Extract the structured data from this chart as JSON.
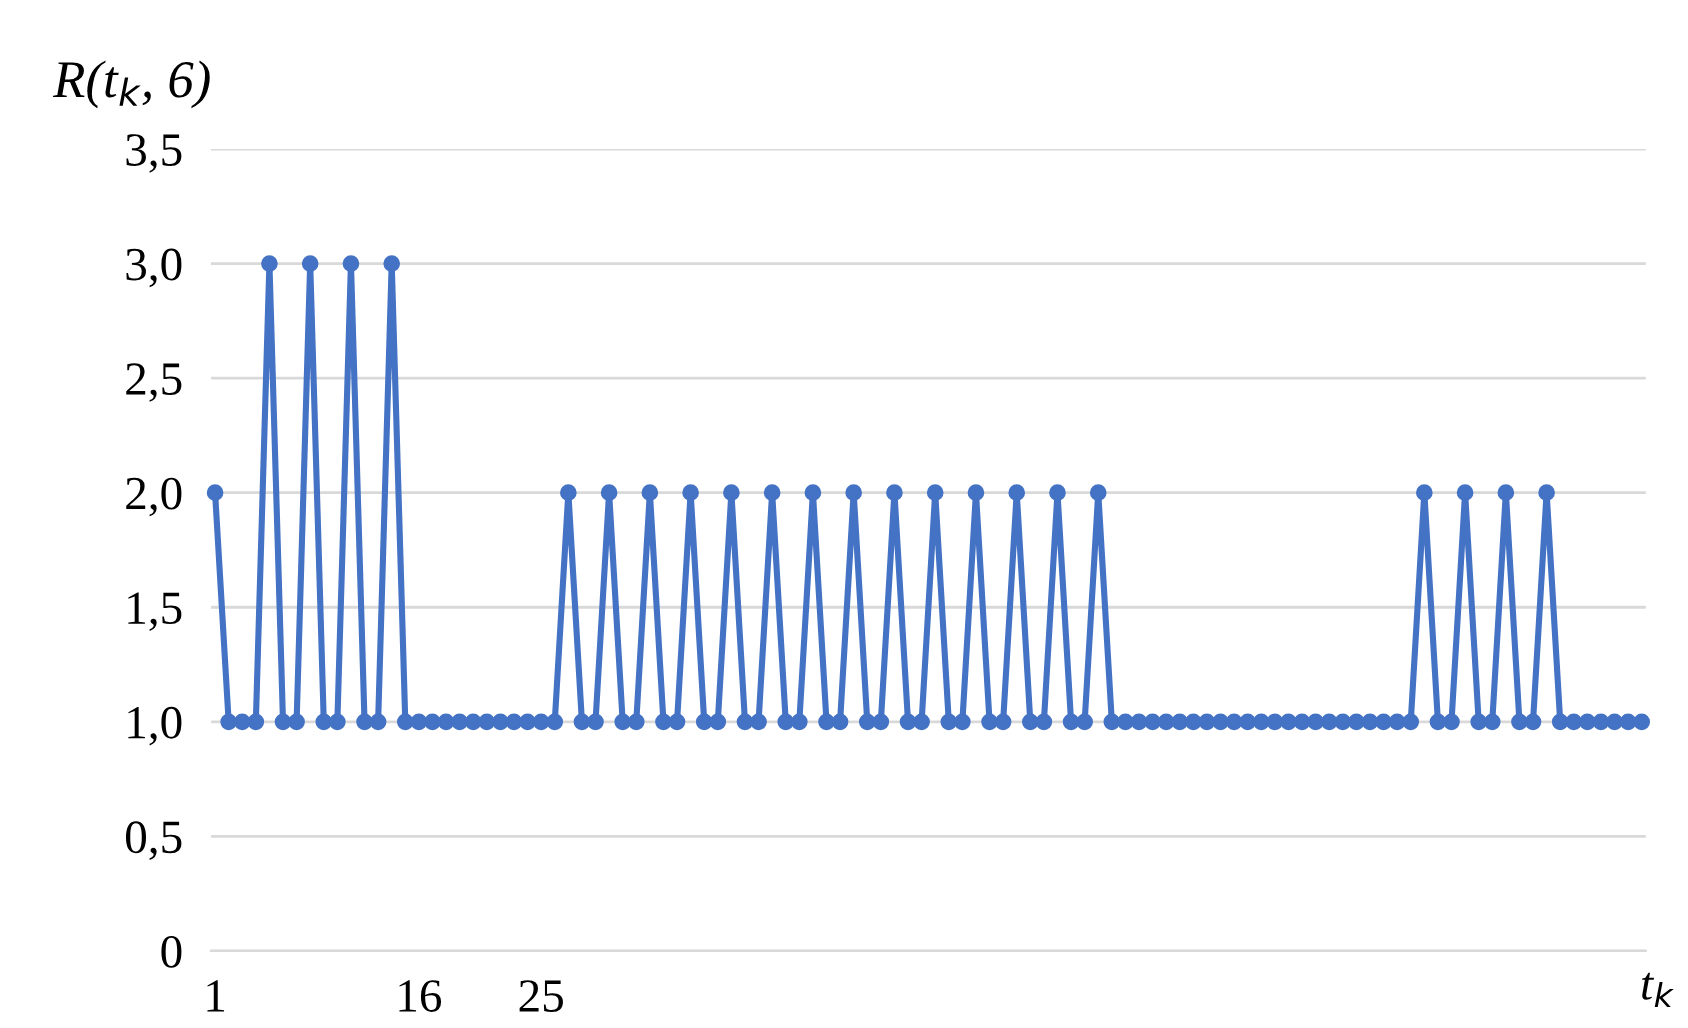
{
  "chart_data": {
    "type": "line",
    "ylabel": "R(t$_{k}$, 6)",
    "xlabel": "t$_{k}$",
    "x": [
      1,
      2,
      3,
      4,
      5,
      6,
      7,
      8,
      9,
      10,
      11,
      12,
      13,
      14,
      15,
      16,
      17,
      18,
      19,
      20,
      21,
      22,
      23,
      24,
      25,
      26,
      27,
      28,
      29,
      30,
      31,
      32,
      33,
      34,
      35,
      36,
      37,
      38,
      39,
      40,
      41,
      42,
      43,
      44,
      45,
      46,
      47,
      48,
      49,
      50,
      51,
      52,
      53,
      54,
      55,
      56,
      57,
      58,
      59,
      60,
      61,
      62,
      63,
      64,
      65,
      66,
      67,
      68,
      69,
      70,
      71,
      72,
      73,
      74,
      75,
      76,
      77,
      78,
      79,
      80,
      81,
      82,
      83,
      84,
      85,
      86,
      87,
      88,
      89,
      90,
      91,
      92,
      93,
      94,
      95,
      96,
      97,
      98,
      99,
      100,
      101,
      102,
      103,
      104,
      105,
      106
    ],
    "series": [
      {
        "color": "#4472c4",
        "values": [
          2,
          1,
          1,
          1,
          3,
          1,
          1,
          3,
          1,
          1,
          3,
          1,
          1,
          3,
          1,
          1,
          1,
          1,
          1,
          1,
          1,
          1,
          1,
          1,
          1,
          1,
          2,
          1,
          1,
          2,
          1,
          1,
          2,
          1,
          1,
          2,
          1,
          1,
          2,
          1,
          1,
          2,
          1,
          1,
          2,
          1,
          1,
          2,
          1,
          1,
          2,
          1,
          1,
          2,
          1,
          1,
          2,
          1,
          1,
          2,
          1,
          1,
          2,
          1,
          1,
          2,
          1,
          1,
          1,
          1,
          1,
          1,
          1,
          1,
          1,
          1,
          1,
          1,
          1,
          1,
          1,
          1,
          1,
          1,
          1,
          1,
          1,
          1,
          1,
          2,
          1,
          1,
          2,
          1,
          1,
          2,
          1,
          1,
          2,
          1,
          1,
          1,
          1,
          1,
          1,
          1
        ]
      }
    ],
    "xlim": [
      0.7,
      106.3
    ],
    "xticks": [
      1,
      16,
      25
    ],
    "ylim": [
      0,
      3.5
    ],
    "yticks": [
      0,
      {
        "value": 0.5,
        "label": "0,5"
      },
      {
        "value": 1,
        "label": "1,0"
      },
      {
        "value": 1.5,
        "label": "1,5"
      },
      {
        "value": 2,
        "label": "2,0"
      },
      {
        "value": 2.5,
        "label": "2,5"
      },
      {
        "value": 3,
        "label": "3,0"
      },
      {
        "value": 3.5,
        "label": "3,5"
      }
    ],
    "grid": "y",
    "marker": "circle",
    "line_style": "solid"
  }
}
